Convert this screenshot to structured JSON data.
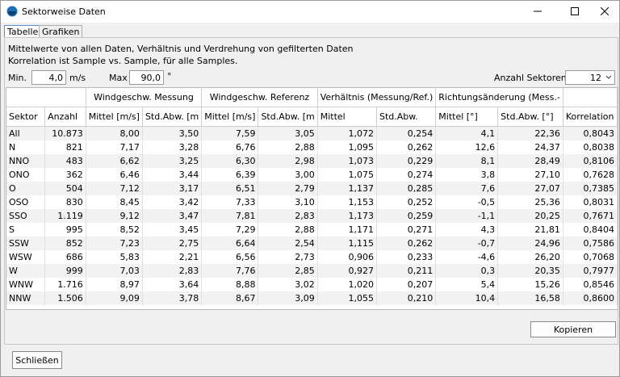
{
  "window": {
    "title": "Sektorweise Daten"
  },
  "tabs": [
    "Tabelle",
    "Grafiken"
  ],
  "description": [
    "Mittelwerte von allen Daten, Verhältnis und Verdrehung von gefilterten Daten",
    "Korrelation ist Sample vs. Sample, für alle Samples."
  ],
  "filters": {
    "min_label": "Min.",
    "min_value": "4,0",
    "min_unit": "m/s",
    "max_label": "Max",
    "max_value": "90,0",
    "max_unit": "°",
    "sectors_label": "Anzahl Sektoren:",
    "sectors_value": "12"
  },
  "table": {
    "group_headers": [
      "Windgeschw. Messung",
      "Windgeschw. Referenz",
      "Verhältnis (Messung/Ref.)",
      "Richtungsänderung (Mess.-"
    ],
    "columns": [
      "Sektor",
      "Anzahl",
      "Mittel [m/s]",
      "Std.Abw. [m",
      "Mittel [m/s]",
      "Std.Abw. [m",
      "Mittel",
      "Std.Abw.",
      "Mittel [°]",
      "Std.Abw. [°]",
      "Korrelation"
    ],
    "rows": [
      [
        "All",
        "10.873",
        "8,00",
        "3,50",
        "7,59",
        "3,05",
        "1,072",
        "0,254",
        "4,1",
        "22,36",
        "0,8043"
      ],
      [
        "N",
        "821",
        "7,17",
        "3,28",
        "6,76",
        "2,88",
        "1,095",
        "0,262",
        "12,6",
        "24,37",
        "0,8038"
      ],
      [
        "NNO",
        "483",
        "6,62",
        "3,25",
        "6,30",
        "2,98",
        "1,073",
        "0,229",
        "8,1",
        "28,49",
        "0,8106"
      ],
      [
        "ONO",
        "362",
        "6,46",
        "3,44",
        "6,39",
        "3,00",
        "1,075",
        "0,274",
        "3,8",
        "27,10",
        "0,7628"
      ],
      [
        "O",
        "504",
        "7,12",
        "3,17",
        "6,51",
        "2,79",
        "1,137",
        "0,285",
        "7,6",
        "27,07",
        "0,7385"
      ],
      [
        "OSO",
        "830",
        "8,45",
        "3,42",
        "7,33",
        "3,10",
        "1,153",
        "0,252",
        "-0,5",
        "25,36",
        "0,8031"
      ],
      [
        "SSO",
        "1.119",
        "9,12",
        "3,47",
        "7,81",
        "2,83",
        "1,173",
        "0,259",
        "-1,1",
        "20,25",
        "0,7671"
      ],
      [
        "S",
        "995",
        "8,52",
        "3,45",
        "7,29",
        "2,88",
        "1,171",
        "0,271",
        "4,3",
        "21,81",
        "0,8404"
      ],
      [
        "SSW",
        "852",
        "7,23",
        "2,75",
        "6,64",
        "2,54",
        "1,115",
        "0,262",
        "-0,7",
        "24,96",
        "0,7586"
      ],
      [
        "WSW",
        "686",
        "5,83",
        "2,21",
        "6,56",
        "2,73",
        "0,906",
        "0,233",
        "-4,6",
        "26,20",
        "0,7068"
      ],
      [
        "W",
        "999",
        "7,03",
        "2,83",
        "7,76",
        "2,85",
        "0,927",
        "0,211",
        "0,3",
        "20,35",
        "0,7977"
      ],
      [
        "WNW",
        "1.716",
        "8,97",
        "3,64",
        "8,88",
        "3,02",
        "1,020",
        "0,207",
        "5,4",
        "15,26",
        "0,8546"
      ],
      [
        "NNW",
        "1.506",
        "9,09",
        "3,78",
        "8,67",
        "3,09",
        "1,055",
        "0,210",
        "10,4",
        "16,58",
        "0,8600"
      ]
    ]
  },
  "buttons": {
    "copy": "Kopieren",
    "close": "Schließen"
  }
}
